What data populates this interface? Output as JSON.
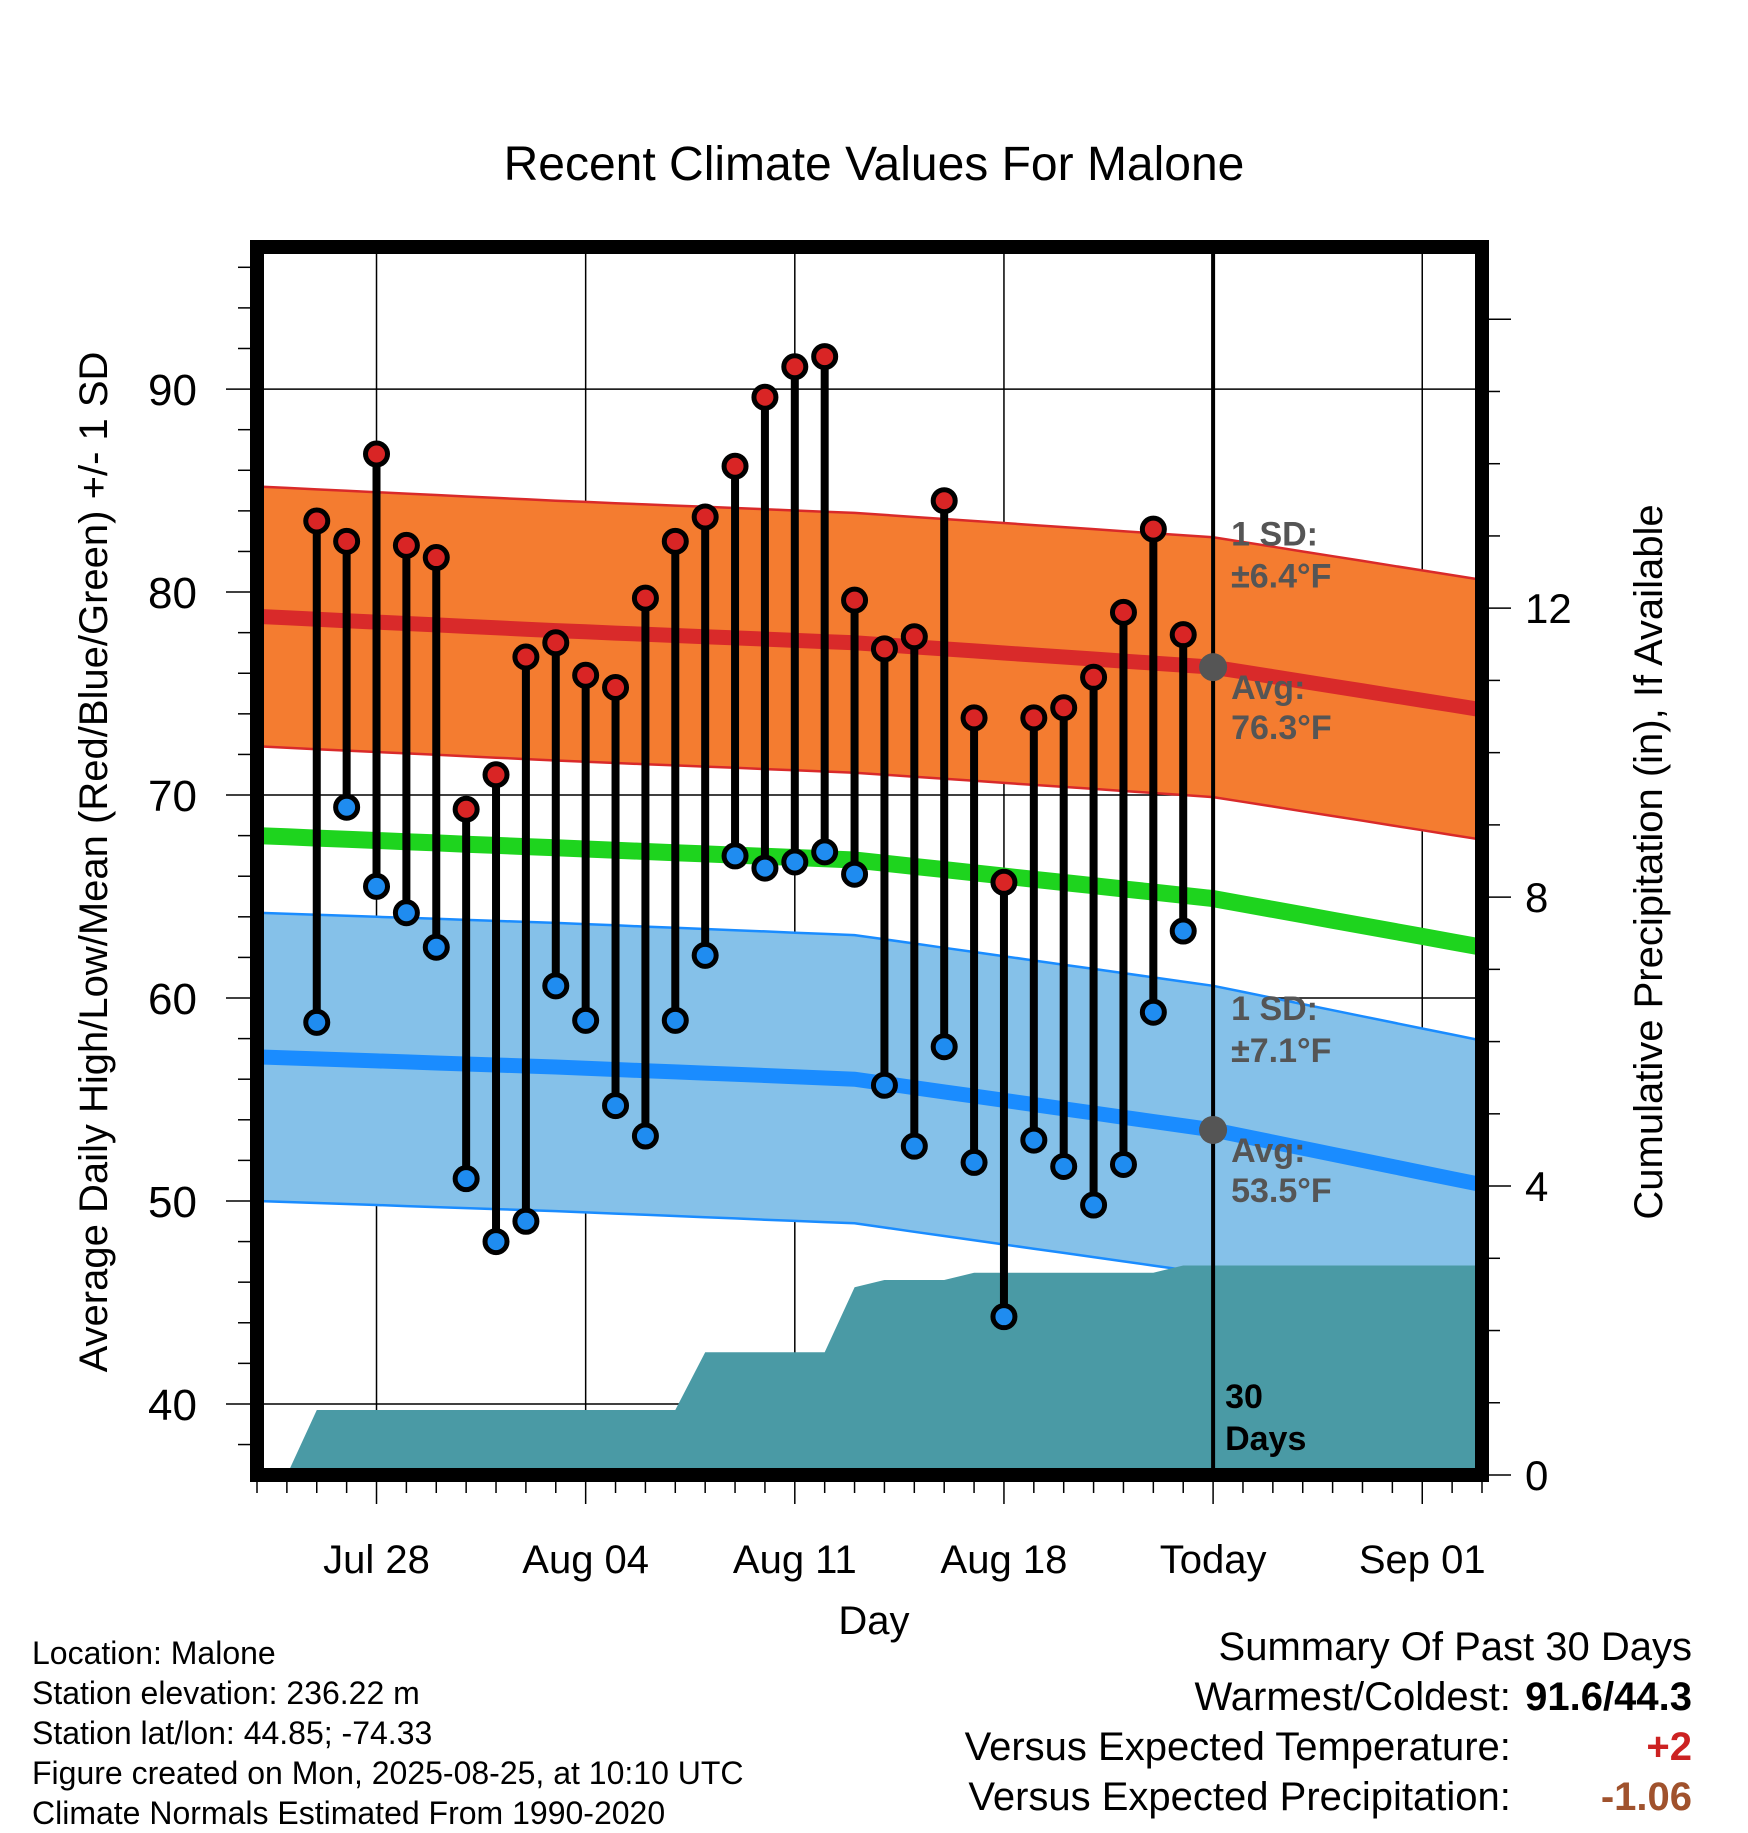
{
  "chart_data": {
    "type": "line",
    "title": "Recent Climate Values For Malone",
    "xlabel": "Day",
    "ylabel": "Average Daily High/Low/Mean (Red/Blue/Green) +/- 1 SD",
    "y2label": "Cumulative Precipitation (in), If Available",
    "ylim": [
      36.5,
      97
    ],
    "y2lim": [
      0,
      17
    ],
    "xlim": [
      "2025-07-24",
      "2025-09-03"
    ],
    "y_ticks": [
      "40",
      "50",
      "60",
      "70",
      "80",
      "90"
    ],
    "y2_ticks": [
      "0",
      "4",
      "8",
      "12"
    ],
    "x_ticks": [
      {
        "date": "2025-07-28",
        "label": "Jul 28"
      },
      {
        "date": "2025-08-04",
        "label": "Aug 04"
      },
      {
        "date": "2025-08-11",
        "label": "Aug 11"
      },
      {
        "date": "2025-08-18",
        "label": "Aug 18"
      },
      {
        "date": "2025-08-25",
        "label": "Today"
      },
      {
        "date": "2025-09-01",
        "label": "Sep 01"
      }
    ],
    "today": "2025-08-25",
    "grid": true,
    "observed": {
      "dates": [
        "2025-07-26",
        "2025-07-27",
        "2025-07-28",
        "2025-07-29",
        "2025-07-30",
        "2025-07-31",
        "2025-08-01",
        "2025-08-02",
        "2025-08-03",
        "2025-08-04",
        "2025-08-05",
        "2025-08-06",
        "2025-08-07",
        "2025-08-08",
        "2025-08-09",
        "2025-08-10",
        "2025-08-11",
        "2025-08-12",
        "2025-08-13",
        "2025-08-14",
        "2025-08-15",
        "2025-08-16",
        "2025-08-17",
        "2025-08-18",
        "2025-08-19",
        "2025-08-20",
        "2025-08-21",
        "2025-08-22",
        "2025-08-23",
        "2025-08-24"
      ],
      "high": [
        83.5,
        82.5,
        86.8,
        82.3,
        81.7,
        69.3,
        71.0,
        76.8,
        77.5,
        75.9,
        75.3,
        79.7,
        82.5,
        83.7,
        86.2,
        89.6,
        91.1,
        91.6,
        79.6,
        77.2,
        77.8,
        84.5,
        73.8,
        65.7,
        73.8,
        74.3,
        75.8,
        79.0,
        83.1,
        77.9
      ],
      "low": [
        58.8,
        69.4,
        65.5,
        64.2,
        62.5,
        51.1,
        48.0,
        49.0,
        60.6,
        58.9,
        54.7,
        53.2,
        58.9,
        62.1,
        67.0,
        66.4,
        66.7,
        67.2,
        66.1,
        55.7,
        52.7,
        57.6,
        51.9,
        44.3,
        53.0,
        51.7,
        49.8,
        51.8,
        59.3,
        63.3
      ]
    },
    "normals": {
      "dates": [
        "2025-07-24",
        "2025-08-03",
        "2025-08-13",
        "2025-08-25",
        "2025-09-03"
      ],
      "avg_high": [
        78.8,
        78.1,
        77.5,
        76.3,
        74.2
      ],
      "avg_low": [
        57.1,
        56.6,
        56.0,
        53.5,
        50.8
      ],
      "avg_mean": [
        68.0,
        67.4,
        66.8,
        64.9,
        62.5
      ],
      "high_sd": 6.4,
      "low_sd": 7.1
    },
    "precip": {
      "dates": [
        "2025-07-25",
        "2025-07-26",
        "2025-08-07",
        "2025-08-08",
        "2025-08-12",
        "2025-08-13",
        "2025-08-14",
        "2025-08-16",
        "2025-08-17",
        "2025-08-23",
        "2025-08-24",
        "2025-09-03"
      ],
      "cumulative": [
        0.0,
        0.9,
        0.9,
        1.7,
        1.7,
        2.6,
        2.7,
        2.7,
        2.8,
        2.8,
        2.9,
        2.9
      ]
    },
    "annotations": {
      "high_sd_label": "1 SD:",
      "high_sd_value": "±6.4°F",
      "high_avg_label": "Avg:",
      "high_avg_value": "76.3°F",
      "low_sd_label": "1 SD:",
      "low_sd_value": "±7.1°F",
      "low_avg_label": "Avg:",
      "low_avg_value": "53.5°F",
      "period_number": "30",
      "period_unit": "Days"
    },
    "colors": {
      "high_band": "#f47c30",
      "high_line": "#d92a2a",
      "low_band": "#85c1e9",
      "low_line": "#1a8cff",
      "mean_line": "#1ed41e",
      "precip_fill": "#4a9aa5",
      "high_dot": "#d92525",
      "low_dot": "#1f8cf0",
      "annotation": "#555555"
    }
  },
  "footer": {
    "location": "Location: Malone",
    "elevation": "Station elevation: 236.22 m",
    "latlon": "Station lat/lon: 44.85; -74.33",
    "created": "Figure created on Mon, 2025-08-25, at 10:10 UTC",
    "normals": "Climate Normals Estimated From 1990-2020"
  },
  "summary": {
    "title": "Summary Of Past 30 Days",
    "warm_cold_label": "Warmest/Coldest:",
    "warm_cold_value": "91.6/44.3",
    "temp_label": "Versus Expected Temperature:",
    "temp_value": "+2",
    "temp_color": "#cc2222",
    "precip_label": "Versus Expected Precipitation:",
    "precip_value": "-1.06",
    "precip_color": "#a0522d"
  }
}
